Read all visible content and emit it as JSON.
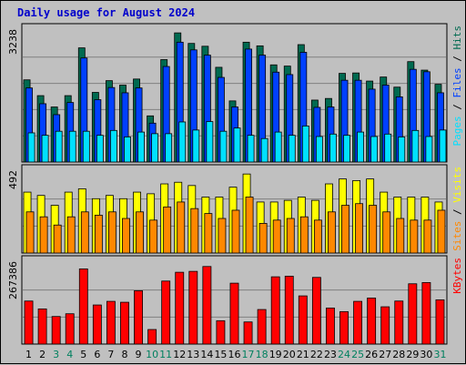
{
  "chart_data": {
    "type": "bar",
    "title": "Daily usage for August 2024",
    "days": [
      "1",
      "2",
      "3",
      "4",
      "5",
      "6",
      "7",
      "8",
      "9",
      "10",
      "11",
      "12",
      "13",
      "14",
      "15",
      "16",
      "17",
      "18",
      "19",
      "20",
      "21",
      "22",
      "23",
      "24",
      "25",
      "26",
      "27",
      "28",
      "29",
      "30",
      "31"
    ],
    "weekend_days": [
      "3",
      "4",
      "10",
      "11",
      "17",
      "18",
      "24",
      "25",
      "31"
    ],
    "panels": [
      {
        "name": "hits-files-pages",
        "ymax_label": "3238",
        "ymax": 3238,
        "series": [
          {
            "name": "Hits",
            "color": "#006a50",
            "values": [
              2030,
              1640,
              1360,
              1640,
              2820,
              1720,
              2010,
              1900,
              2050,
              1140,
              2530,
              3190,
              2930,
              2860,
              2340,
              1510,
              2960,
              2870,
              2400,
              2370,
              2900,
              1530,
              1570,
              2190,
              2200,
              2000,
              2100,
              1850,
              2480,
              2270,
              1920
            ]
          },
          {
            "name": "Files",
            "color": "#0040ff",
            "values": [
              1830,
              1440,
              1170,
              1470,
              2570,
              1540,
              1840,
              1710,
              1830,
              960,
              2360,
              2960,
              2770,
              2640,
              2090,
              1360,
              2790,
              2640,
              2220,
              2160,
              2710,
              1350,
              1360,
              2020,
              2020,
              1800,
              1900,
              1610,
              2290,
              2230,
              1710
            ]
          },
          {
            "name": "Pages",
            "color": "#00e0ff",
            "values": [
              720,
              660,
              760,
              760,
              760,
              660,
              780,
              620,
              740,
              700,
              700,
              990,
              790,
              1000,
              760,
              840,
              660,
              580,
              740,
              660,
              890,
              630,
              690,
              660,
              740,
              630,
              690,
              620,
              780,
              630,
              790
            ]
          }
        ]
      },
      {
        "name": "visits-sites",
        "ymax_label": "492",
        "ymax": 492,
        "series": [
          {
            "name": "Visits",
            "color": "#ffff00",
            "values": [
              370,
              350,
              290,
              370,
              390,
              330,
              350,
              330,
              370,
              360,
              420,
              430,
              410,
              340,
              340,
              400,
              480,
              310,
              310,
              320,
              340,
              320,
              420,
              450,
              440,
              450,
              370,
              340,
              340,
              340,
              310
            ]
          },
          {
            "name": "Sites",
            "color": "#ff8800",
            "values": [
              250,
              220,
              170,
              220,
              250,
              230,
              250,
              210,
              250,
              200,
              280,
              310,
              270,
              240,
              210,
              260,
              340,
              180,
              200,
              210,
              220,
              200,
              250,
              290,
              300,
              290,
              250,
              210,
              200,
              200,
              260
            ]
          }
        ]
      },
      {
        "name": "kbytes",
        "ymax_label": "267386",
        "ymax": 267386,
        "series": [
          {
            "name": "KBytes",
            "color": "#ff0000",
            "values": [
              142000,
              116000,
              91000,
              100000,
              248000,
              129000,
              141000,
              138000,
              176000,
              48000,
              208000,
              237000,
              240000,
              256000,
              77000,
              201000,
              73000,
              114000,
              222000,
              224000,
              159000,
              220000,
              119000,
              107000,
              141000,
              152000,
              123000,
              142000,
              199000,
              203000,
              146000
            ]
          }
        ]
      }
    ],
    "right_labels": [
      {
        "panel": 0,
        "parts": [
          {
            "text": "Pages",
            "color": "#00e0ff"
          },
          {
            "text": " / ",
            "color": "#000000"
          },
          {
            "text": "Files",
            "color": "#0040ff"
          },
          {
            "text": " / ",
            "color": "#000000"
          },
          {
            "text": "Hits",
            "color": "#006a50"
          }
        ]
      },
      {
        "panel": 1,
        "parts": [
          {
            "text": "Sites",
            "color": "#ff8800"
          },
          {
            "text": " / ",
            "color": "#000000"
          },
          {
            "text": "Visits",
            "color": "#ffff00"
          }
        ]
      },
      {
        "panel": 2,
        "parts": [
          {
            "text": "KBytes",
            "color": "#ff0000"
          }
        ]
      }
    ],
    "colors": {
      "weekday_tick": "#000000",
      "weekend_tick": "#00805f",
      "title": "#0000cc",
      "background": "#c0c0c0",
      "grid": "#808080"
    }
  }
}
